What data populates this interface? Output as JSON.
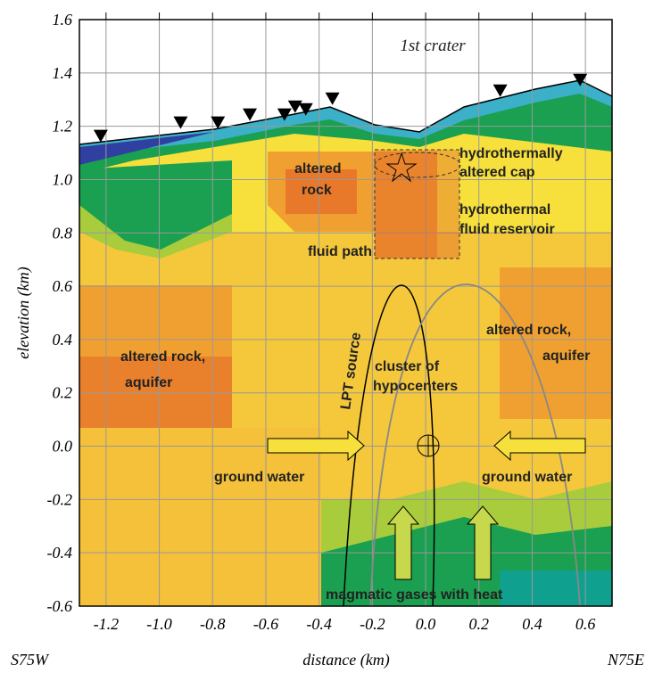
{
  "chart_data": {
    "type": "section",
    "x_label": "distance (km)",
    "y_label": "elevation (km)",
    "left_end": "S75W",
    "right_end": "N75E",
    "xlim": [
      -1.3,
      0.7
    ],
    "xticks": [
      -1.2,
      {
        "value": -1,
        "label": "-1.0"
      },
      -0.8,
      -0.6,
      -0.4,
      -0.2,
      {
        "value": 0,
        "label": "0.0"
      },
      0.2,
      0.4,
      0.6
    ],
    "ylim": [
      -0.6,
      1.6
    ],
    "yticks": [
      -0.6,
      -0.4,
      -0.2,
      {
        "value": 0,
        "label": "0.0"
      },
      0.2,
      0.4,
      0.6,
      0.8,
      {
        "value": 1,
        "label": "1.0"
      },
      1.2,
      1.4,
      1.6
    ],
    "grid": true,
    "stations": {
      "color": "#000000",
      "x": [
        -1.22,
        -0.92,
        -0.78,
        -0.66,
        -0.53,
        -0.49,
        -0.45,
        -0.35,
        0.28,
        0.58
      ],
      "y": [
        1.16,
        1.21,
        1.21,
        1.24,
        1.24,
        1.27,
        1.26,
        1.3,
        1.33,
        1.37
      ]
    },
    "annotations": [
      "1st crater",
      "hydrothermally",
      "altered cap",
      "altered",
      "rock",
      "hydrothermal",
      "fluid reservoir",
      "fluid path",
      "LPT source",
      "altered rock,",
      "aquifer",
      "altered rock,",
      "aquifer",
      "cluster of",
      "hypocenters",
      "ground water",
      "ground water",
      "magmatic gases with heat"
    ]
  }
}
